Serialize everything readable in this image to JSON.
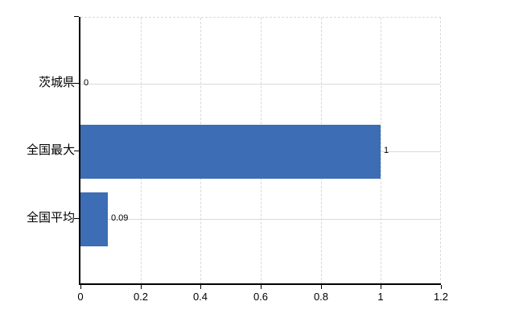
{
  "chart_data": {
    "type": "bar",
    "orientation": "horizontal",
    "title": "",
    "xlabel": "",
    "ylabel": "",
    "categories": [
      "茨城県",
      "全国最大",
      "全国平均"
    ],
    "values": [
      0,
      1,
      0.09
    ],
    "value_labels": [
      "0",
      "1",
      "0.09"
    ],
    "xlim": [
      0,
      1.2
    ],
    "xticks": [
      0,
      0.2,
      0.4,
      0.6,
      0.8,
      1,
      1.2
    ],
    "xtick_labels": [
      "0",
      "0.2",
      "0.4",
      "0.6",
      "0.8",
      "1",
      "1.2"
    ],
    "grid": true,
    "legend": false,
    "bar_color": "#3c6db5",
    "grid_color": "#d9d9d9",
    "axis_color": "#000000",
    "text_color": "#000000",
    "background_color": "#ffffff"
  }
}
